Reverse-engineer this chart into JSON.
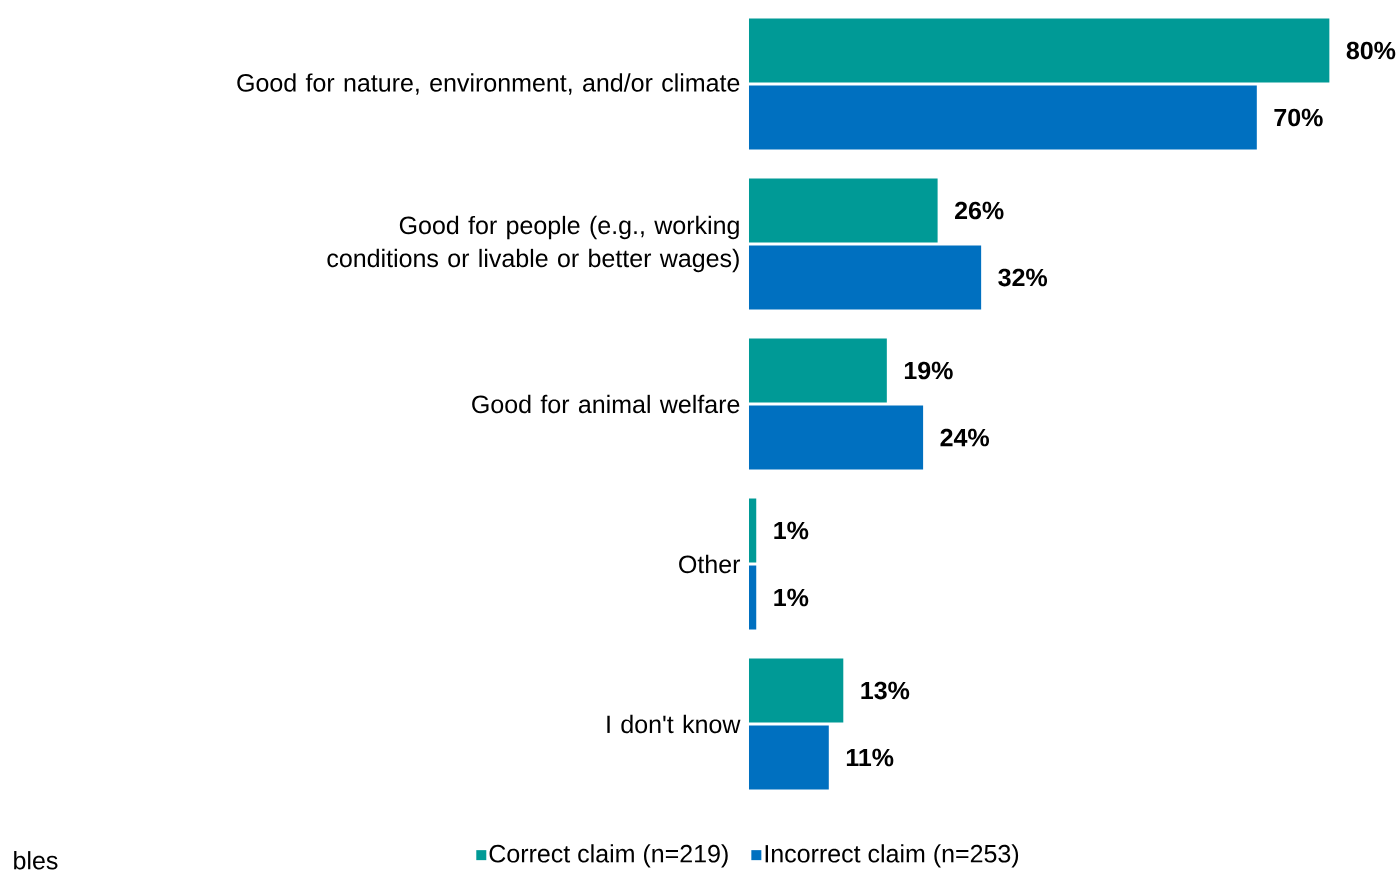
{
  "chart_data": {
    "type": "bar",
    "orientation": "horizontal",
    "categories": [
      "Good for nature, environment, and/or climate",
      "Good for people (e.g., working conditions or livable or better wages)",
      "Good for animal welfare",
      "Other",
      "I don't know"
    ],
    "series": [
      {
        "name": "Correct claim (n=219)",
        "color": "#009a96",
        "values": [
          80,
          26,
          19,
          1,
          13
        ],
        "value_labels": [
          "80%",
          "26%",
          "19%",
          "1%",
          "13%"
        ]
      },
      {
        "name": "Incorrect claim (n=253)",
        "color": "#0070c0",
        "values": [
          70,
          32,
          24,
          1,
          11
        ],
        "value_labels": [
          "70%",
          "32%",
          "24%",
          "1%",
          "11%"
        ]
      }
    ],
    "legend": "bottom",
    "annotations": [
      "bles"
    ]
  }
}
